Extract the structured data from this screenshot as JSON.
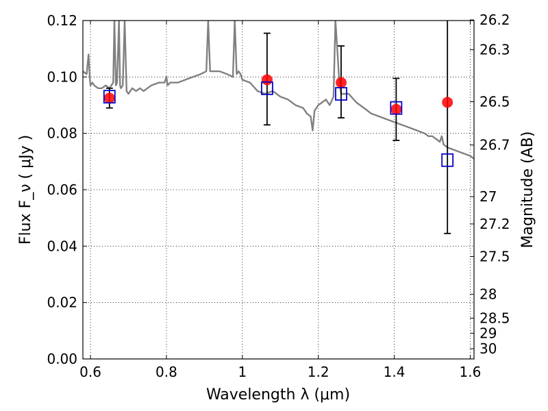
{
  "chart_data": {
    "type": "scatter",
    "xlabel": "Wavelength  λ (μm)",
    "ylabel": "Flux  F_ν  ( μJy )",
    "y2label": "Magnitude (AB)",
    "xlim": [
      0.58,
      1.61
    ],
    "ylim": [
      0.0,
      0.12
    ],
    "grid": true,
    "x_ticks": [
      0.6,
      0.8,
      1.0,
      1.2,
      1.4,
      1.6
    ],
    "x_tick_labels": [
      "0.6",
      "0.8",
      "1",
      "1.2",
      "1.4",
      "1.6"
    ],
    "y_ticks": [
      0.0,
      0.02,
      0.04,
      0.06,
      0.08,
      0.1,
      0.12
    ],
    "y_tick_labels": [
      "0.00",
      "0.02",
      "0.04",
      "0.06",
      "0.08",
      "0.10",
      "0.12"
    ],
    "mag_ticks": [
      26.2,
      26.3,
      26.5,
      26.7,
      27,
      27.2,
      27.5,
      28,
      28.5,
      29,
      30
    ],
    "mag_tick_labels": [
      "26.2",
      "26.3",
      "26.5",
      "26.7",
      "27",
      "27.2",
      "27.5",
      "28",
      "28.5",
      "29",
      "30"
    ],
    "series": [
      {
        "kind": "model_spectrum",
        "color": "#808080",
        "x": [
          0.58,
          0.59,
          0.595,
          0.598,
          0.6,
          0.605,
          0.61,
          0.62,
          0.63,
          0.64,
          0.65,
          0.655,
          0.66,
          0.663,
          0.667,
          0.67,
          0.675,
          0.678,
          0.68,
          0.685,
          0.69,
          0.695,
          0.7,
          0.71,
          0.72,
          0.73,
          0.74,
          0.75,
          0.76,
          0.78,
          0.795,
          0.8,
          0.803,
          0.81,
          0.83,
          0.85,
          0.87,
          0.89,
          0.905,
          0.91,
          0.915,
          0.92,
          0.94,
          0.96,
          0.975,
          0.98,
          0.985,
          0.99,
          0.995,
          1.0,
          1.02,
          1.04,
          1.06,
          1.08,
          1.1,
          1.12,
          1.14,
          1.16,
          1.17,
          1.18,
          1.185,
          1.19,
          1.2,
          1.22,
          1.23,
          1.24,
          1.245,
          1.255,
          1.26,
          1.28,
          1.3,
          1.32,
          1.34,
          1.36,
          1.38,
          1.4,
          1.42,
          1.44,
          1.46,
          1.48,
          1.49,
          1.5,
          1.51,
          1.52,
          1.525,
          1.53,
          1.54,
          1.56,
          1.58,
          1.6,
          1.61
        ],
        "y": [
          0.102,
          0.101,
          0.108,
          0.1,
          0.097,
          0.098,
          0.097,
          0.096,
          0.096,
          0.097,
          0.096,
          0.097,
          0.098,
          0.12,
          0.097,
          0.098,
          0.12,
          0.097,
          0.096,
          0.097,
          0.12,
          0.095,
          0.094,
          0.096,
          0.095,
          0.096,
          0.095,
          0.096,
          0.097,
          0.098,
          0.098,
          0.1,
          0.097,
          0.098,
          0.098,
          0.099,
          0.1,
          0.101,
          0.102,
          0.12,
          0.102,
          0.102,
          0.102,
          0.101,
          0.1,
          0.12,
          0.101,
          0.102,
          0.101,
          0.099,
          0.098,
          0.095,
          0.094,
          0.095,
          0.093,
          0.092,
          0.09,
          0.089,
          0.087,
          0.086,
          0.081,
          0.088,
          0.09,
          0.092,
          0.09,
          0.093,
          0.12,
          0.099,
          0.094,
          0.094,
          0.091,
          0.089,
          0.087,
          0.086,
          0.085,
          0.084,
          0.083,
          0.082,
          0.081,
          0.08,
          0.079,
          0.079,
          0.078,
          0.077,
          0.079,
          0.076,
          0.075,
          0.074,
          0.073,
          0.072,
          0.071
        ]
      },
      {
        "kind": "model_photometry",
        "marker": "open_square",
        "color": "#0000cc",
        "x": [
          0.65,
          1.065,
          1.26,
          1.405,
          1.54
        ],
        "y": [
          0.093,
          0.096,
          0.094,
          0.089,
          0.0705
        ]
      },
      {
        "kind": "observed_photometry",
        "marker": "filled_circle",
        "color": "#ff0000",
        "x": [
          0.65,
          1.065,
          1.26,
          1.405,
          1.54
        ],
        "y": [
          0.0925,
          0.099,
          0.098,
          0.0885,
          0.091
        ],
        "yerr_low": [
          0.089,
          0.083,
          0.0855,
          0.0775,
          0.0445
        ],
        "yerr_high": [
          0.096,
          0.1155,
          0.111,
          0.0995,
          0.121
        ]
      }
    ]
  }
}
